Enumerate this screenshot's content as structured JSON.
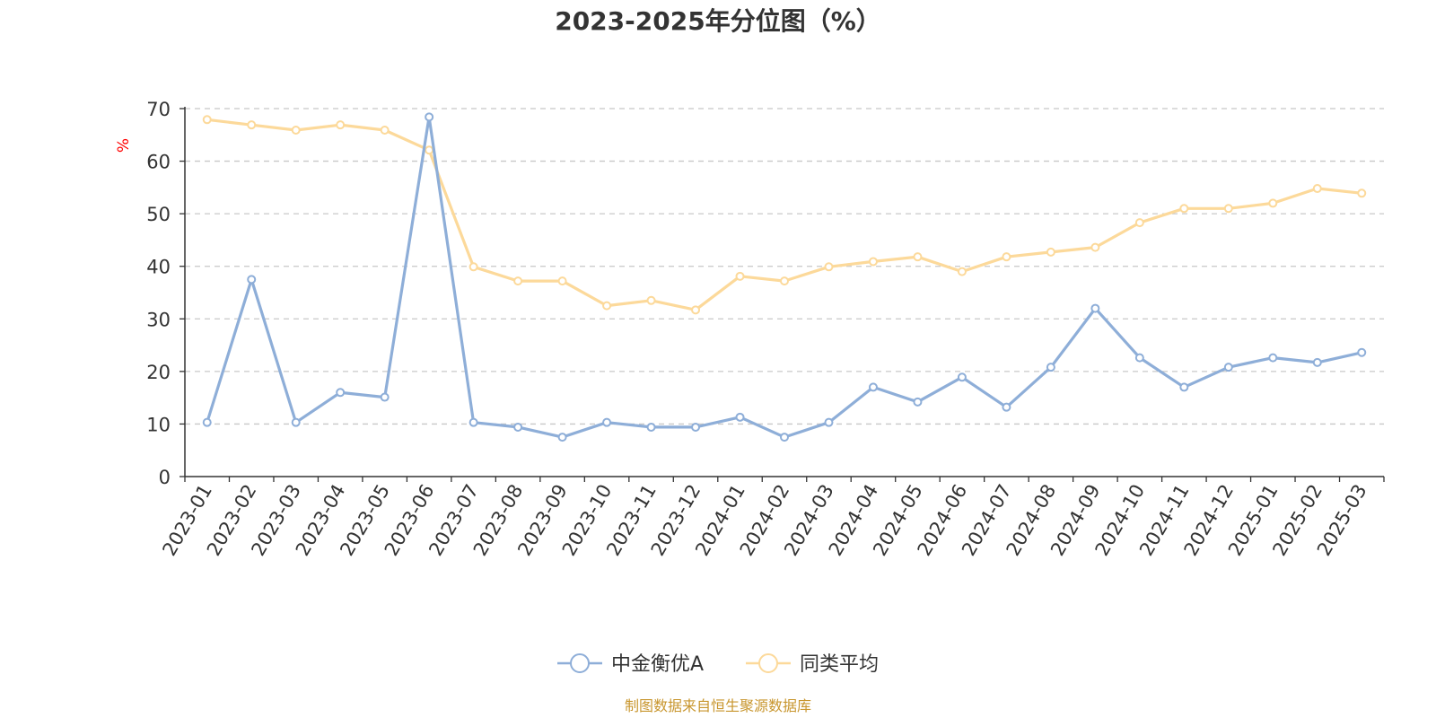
{
  "chart_data": {
    "type": "line",
    "title": "2023-2025年分位图（%）",
    "ylabel": "%",
    "xlabel": "",
    "ylim": [
      0,
      70
    ],
    "yticks": [
      0,
      10,
      20,
      30,
      40,
      50,
      60,
      70
    ],
    "grid": true,
    "legend_position": "bottom",
    "categories": [
      "2023-01",
      "2023-02",
      "2023-03",
      "2023-04",
      "2023-05",
      "2023-06",
      "2023-07",
      "2023-08",
      "2023-09",
      "2023-10",
      "2023-11",
      "2023-12",
      "2024-01",
      "2024-02",
      "2024-03",
      "2024-04",
      "2024-05",
      "2024-06",
      "2024-07",
      "2024-08",
      "2024-09",
      "2024-10",
      "2024-11",
      "2024-12",
      "2025-01",
      "2025-02",
      "2025-03"
    ],
    "series": [
      {
        "name": "中金衡优A",
        "color": "#8eaed8",
        "values": [
          10.3,
          37.5,
          10.3,
          16.0,
          15.1,
          68.4,
          10.3,
          9.4,
          7.5,
          10.3,
          9.4,
          9.4,
          11.3,
          7.5,
          10.3,
          17.0,
          14.2,
          18.9,
          13.2,
          20.8,
          32.0,
          22.6,
          17.0,
          20.8,
          22.6,
          21.7,
          23.6
        ]
      },
      {
        "name": "同类平均",
        "color": "#fcd99a",
        "values": [
          67.9,
          66.9,
          65.9,
          66.9,
          65.9,
          62.1,
          39.9,
          37.2,
          37.2,
          32.5,
          33.5,
          31.7,
          38.1,
          37.2,
          39.9,
          40.9,
          41.8,
          39.0,
          41.8,
          42.7,
          43.6,
          48.3,
          51.0,
          51.0,
          52.0,
          54.8,
          53.9
        ]
      }
    ]
  },
  "source": "制图数据来自恒生聚源数据库"
}
